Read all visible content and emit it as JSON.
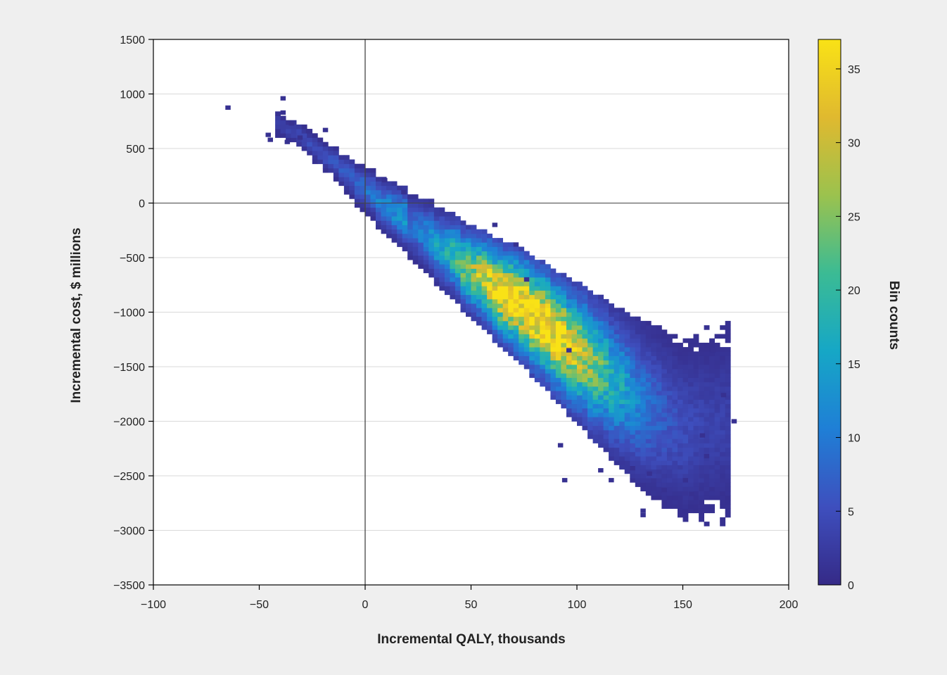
{
  "chart_data": {
    "type": "heatmap",
    "subtype": "2d-histogram",
    "title": "",
    "xlabel": "Incremental QALY, thousands",
    "ylabel": "Incremental cost, $ millions",
    "xlim": [
      -100,
      200
    ],
    "ylim": [
      -3500,
      1500
    ],
    "x_ticks": [
      -100,
      -50,
      0,
      50,
      100,
      150,
      200
    ],
    "y_ticks": [
      1500,
      1000,
      500,
      0,
      -500,
      -1000,
      -1500,
      -2000,
      -2500,
      -3000,
      -3500
    ],
    "grid": "horizontal",
    "reference_lines": {
      "x": 0,
      "y": 0
    },
    "bin_size": {
      "x": 2.5,
      "y": 40
    },
    "colorbar": {
      "label": "Bin counts",
      "range": [
        0,
        37
      ],
      "ticks": [
        0,
        5,
        10,
        15,
        20,
        25,
        30,
        35
      ],
      "colormap": "viridis-parula",
      "stops": [
        "#352a87",
        "#3e4fbe",
        "#1f7fd6",
        "#16a7c6",
        "#3bbb94",
        "#9bc24e",
        "#e0b92f",
        "#f9e216"
      ]
    },
    "colors": {
      "background": "#efefef",
      "plot_area": "#ffffff",
      "grid": "#d9d9d9",
      "reference_line": "#444444"
    },
    "distribution": {
      "ridge": {
        "x": [
          -40,
          -20,
          0,
          25,
          50,
          75,
          100,
          125,
          150,
          170
        ],
        "y": [
          700,
          420,
          80,
          -280,
          -650,
          -1000,
          -1400,
          -1800,
          -2100,
          -2000
        ]
      },
      "peak": {
        "x": 77,
        "y": -980,
        "count": 37
      }
    },
    "outliers": [
      [
        -66,
        875
      ],
      [
        -40,
        960
      ],
      [
        -40,
        830
      ],
      [
        -40,
        780
      ],
      [
        -36,
        730
      ],
      [
        -47,
        625
      ],
      [
        -46,
        580
      ],
      [
        -38,
        560
      ],
      [
        -32,
        600
      ],
      [
        -28,
        660
      ],
      [
        -20,
        670
      ],
      [
        8,
        210
      ],
      [
        17,
        100
      ],
      [
        60,
        -200
      ],
      [
        70,
        -380
      ],
      [
        75,
        -700
      ],
      [
        95,
        -1350
      ],
      [
        130,
        -2820
      ],
      [
        130,
        -2860
      ],
      [
        93,
        -2540
      ],
      [
        115,
        -2540
      ],
      [
        150,
        -2540
      ],
      [
        153,
        -2665
      ],
      [
        140,
        -2630
      ],
      [
        163,
        -1350
      ],
      [
        168,
        -1760
      ],
      [
        173,
        -2000
      ],
      [
        158,
        -2130
      ],
      [
        91,
        -2220
      ],
      [
        110,
        -2450
      ],
      [
        125,
        -2430
      ],
      [
        160,
        -2320
      ],
      [
        133,
        -2480
      ]
    ]
  }
}
